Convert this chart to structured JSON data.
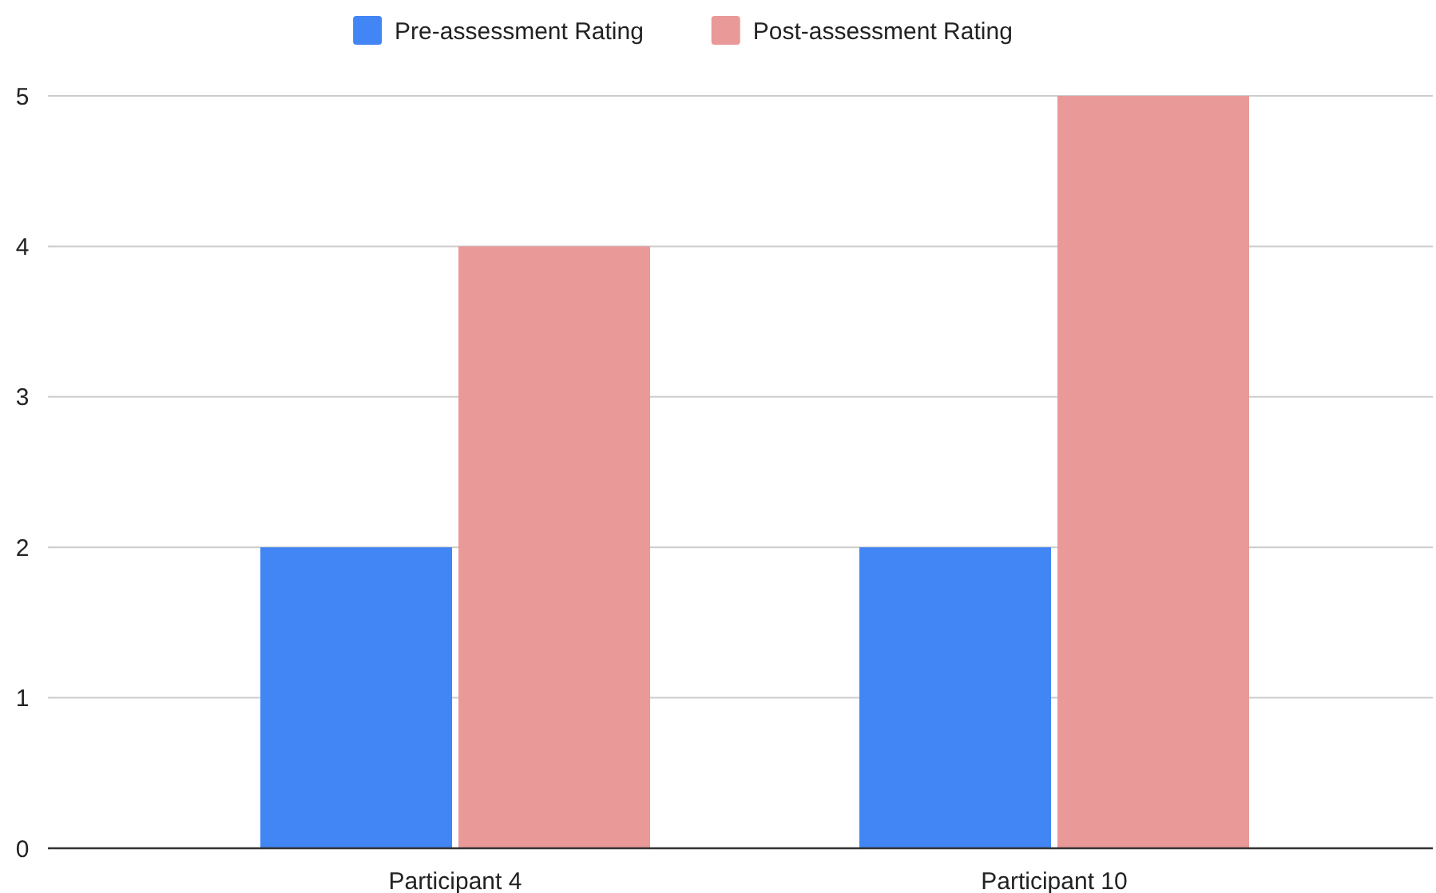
{
  "chart_data": {
    "type": "bar",
    "categories": [
      "Participant 4",
      "Participant 10"
    ],
    "series": [
      {
        "name": "Pre-assessment Rating",
        "color": "#4285f4",
        "values": [
          2,
          2
        ]
      },
      {
        "name": "Post-assessment Rating",
        "color": "#ea9999",
        "values": [
          4,
          5
        ]
      }
    ],
    "ylim": [
      0,
      5
    ],
    "yticks": [
      0,
      1,
      2,
      3,
      4,
      5
    ],
    "grid": true,
    "legend": "top"
  }
}
